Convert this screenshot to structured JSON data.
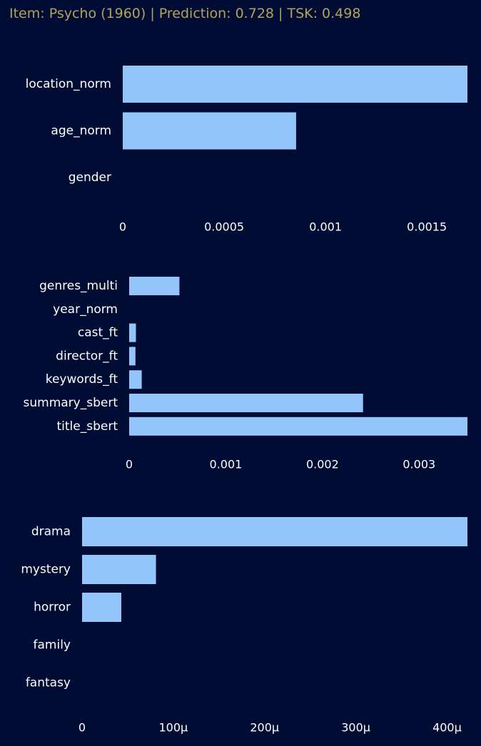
{
  "title": "Item: Psycho (1960) | Prediction: 0.728 | TSK: 0.498",
  "colors": {
    "background": "#000c33",
    "bar": "#93c5fb",
    "title": "#b0a35c",
    "text": "#ffffff"
  },
  "chart_data": [
    {
      "type": "bar",
      "orientation": "horizontal",
      "categories": [
        "location_norm",
        "age_norm",
        "gender"
      ],
      "values": [
        0.00173,
        0.000855,
        0
      ],
      "xlim": [
        0,
        0.0017
      ],
      "xticks": [
        0,
        0.0005,
        0.001,
        0.0015
      ],
      "xtick_labels": [
        "0",
        "0.0005",
        "0.001",
        "0.0015"
      ],
      "grid": false
    },
    {
      "type": "bar",
      "orientation": "horizontal",
      "categories": [
        "genres_multi",
        "year_norm",
        "cast_ft",
        "director_ft",
        "keywords_ft",
        "summary_sbert",
        "title_sbert"
      ],
      "values": [
        0.00052,
        0,
        7e-05,
        6.5e-05,
        0.00013,
        0.00242,
        0.00355
      ],
      "xlim": [
        0,
        0.0035
      ],
      "xticks": [
        0,
        0.001,
        0.002,
        0.003
      ],
      "xtick_labels": [
        "0",
        "0.001",
        "0.002",
        "0.003"
      ],
      "grid": false
    },
    {
      "type": "bar",
      "orientation": "horizontal",
      "categories": [
        "drama",
        "mystery",
        "horror",
        "family",
        "fantasy"
      ],
      "values": [
        0.000426,
        8.1e-05,
        4.3e-05,
        0,
        0
      ],
      "xlim": [
        0,
        0.00042
      ],
      "xticks": [
        0,
        0.0001,
        0.0002,
        0.0003,
        0.0004
      ],
      "xtick_labels": [
        "0",
        "100μ",
        "200μ",
        "300μ",
        "400μ"
      ],
      "grid": false
    }
  ]
}
